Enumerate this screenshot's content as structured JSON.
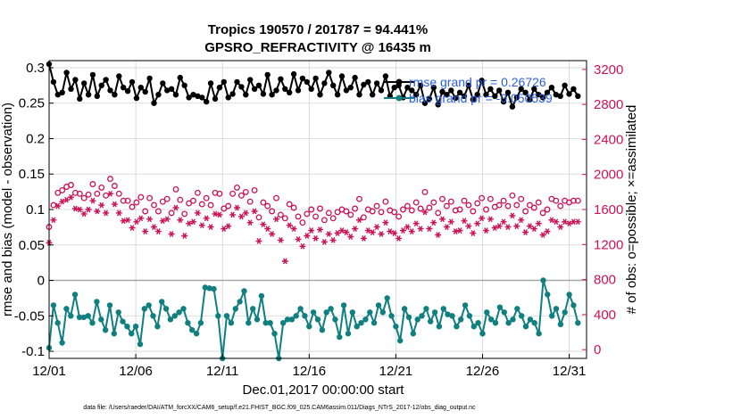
{
  "colors": {
    "rmse": "#000000",
    "bias": "#0f7f7f",
    "nobs": "#cc1257",
    "legend_text": "#2a5fe0",
    "grid": "#d3d3d3",
    "zero_line": "#a8a8a8"
  },
  "chart_data": {
    "type": "line",
    "title": "Tropics 190570 / 201787 = 94.441%",
    "subtitle": "GPSRO_REFRACTIVITY @ 16435 m",
    "xlabel": "Dec.01,2017 00:00:00 start",
    "ylabel": "rmse and bias (model - observation)",
    "y2label": "# of obs: o=possible; ×=assimilated",
    "xlim": [
      0,
      31
    ],
    "ylim": [
      -0.11,
      0.31
    ],
    "y2lim": [
      -100,
      3300
    ],
    "x_ticks": [
      0,
      5,
      10,
      15,
      20,
      25,
      30
    ],
    "x_tick_labels": [
      "12/01",
      "12/06",
      "12/11",
      "12/16",
      "12/21",
      "12/26",
      "12/31"
    ],
    "y_ticks": [
      -0.1,
      -0.05,
      0,
      0.05,
      0.1,
      0.15,
      0.2,
      0.25,
      0.3
    ],
    "y_tick_labels": [
      "-0.1",
      "-0.05",
      "0",
      "0.05",
      "0.1",
      "0.15",
      "0.2",
      "0.25",
      "0.3"
    ],
    "y2_ticks": [
      0,
      400,
      800,
      1200,
      1600,
      2000,
      2400,
      2800,
      3200
    ],
    "y2_tick_labels": [
      "0",
      "400",
      "800",
      "1200",
      "1600",
      "2000",
      "2400",
      "2800",
      "3200"
    ],
    "grid": true,
    "legend_position": "top-right",
    "series": [
      {
        "name": "rmse",
        "legend": "rmse grand pr = 0.26726",
        "axis": "left",
        "values": [
          0.305,
          0.28,
          0.262,
          0.265,
          0.293,
          0.27,
          0.283,
          0.256,
          0.278,
          0.262,
          0.29,
          0.26,
          0.275,
          0.283,
          0.268,
          0.262,
          0.288,
          0.272,
          0.267,
          0.28,
          0.257,
          0.272,
          0.266,
          0.285,
          0.25,
          0.262,
          0.278,
          0.268,
          0.27,
          0.262,
          0.286,
          0.275,
          0.258,
          0.262,
          0.26,
          0.258,
          0.252,
          0.278,
          0.256,
          0.272,
          0.28,
          0.258,
          0.263,
          0.28,
          0.273,
          0.262,
          0.283,
          0.27,
          0.275,
          0.263,
          0.29,
          0.262,
          0.268,
          0.284,
          0.27,
          0.265,
          0.291,
          0.268,
          0.285,
          0.28,
          0.27,
          0.285,
          0.262,
          0.278,
          0.293,
          0.275,
          0.262,
          0.288,
          0.268,
          0.272,
          0.286,
          0.262,
          0.276,
          0.28,
          0.262,
          0.278,
          0.268,
          0.288,
          0.26,
          0.272,
          0.275,
          0.258,
          0.272,
          0.268,
          0.262,
          0.275,
          0.25,
          0.256,
          0.272,
          0.248,
          0.266,
          0.262,
          0.268,
          0.257,
          0.265,
          0.26,
          0.275,
          0.255,
          0.262,
          0.282,
          0.262,
          0.27,
          0.26,
          0.268,
          0.252,
          0.265,
          0.245,
          0.258,
          0.27,
          0.265,
          0.255,
          0.27,
          0.262,
          0.258,
          0.265,
          0.272,
          0.262,
          0.26,
          0.275,
          0.263,
          0.27,
          0.26
        ]
      },
      {
        "name": "bias",
        "legend": "bias grand pr = -0.050539",
        "axis": "left",
        "values": [
          -0.095,
          -0.035,
          -0.06,
          -0.088,
          -0.04,
          -0.05,
          -0.02,
          -0.052,
          -0.052,
          -0.05,
          -0.06,
          -0.03,
          -0.055,
          -0.07,
          -0.035,
          -0.075,
          -0.045,
          -0.058,
          -0.065,
          -0.075,
          -0.065,
          -0.09,
          -0.04,
          -0.035,
          -0.05,
          -0.065,
          -0.03,
          -0.04,
          -0.055,
          -0.05,
          -0.045,
          -0.04,
          -0.06,
          -0.07,
          -0.075,
          -0.06,
          -0.01,
          -0.011,
          -0.012,
          -0.05,
          -0.115,
          -0.05,
          -0.06,
          -0.04,
          -0.03,
          -0.015,
          -0.06,
          -0.04,
          -0.055,
          -0.022,
          -0.06,
          -0.06,
          -0.075,
          -0.11,
          -0.06,
          -0.055,
          -0.055,
          -0.05,
          -0.04,
          -0.05,
          -0.065,
          -0.045,
          -0.055,
          -0.07,
          -0.045,
          -0.04,
          -0.055,
          -0.08,
          -0.035,
          -0.075,
          -0.045,
          -0.065,
          -0.06,
          -0.055,
          -0.045,
          -0.06,
          -0.035,
          -0.045,
          -0.025,
          -0.05,
          -0.065,
          -0.085,
          -0.04,
          -0.052,
          -0.075,
          -0.055,
          -0.05,
          -0.04,
          -0.058,
          -0.045,
          -0.065,
          -0.04,
          -0.048,
          -0.05,
          -0.065,
          -0.055,
          -0.035,
          -0.05,
          -0.065,
          -0.06,
          -0.075,
          -0.045,
          -0.055,
          -0.06,
          -0.038,
          -0.045,
          -0.06,
          -0.055,
          -0.04,
          -0.05,
          -0.065,
          -0.055,
          -0.06,
          -0.075,
          0.0,
          -0.02,
          -0.05,
          -0.04,
          -0.062,
          -0.045,
          -0.02,
          -0.035,
          -0.06
        ]
      },
      {
        "name": "obs possible",
        "legend": "",
        "axis": "right",
        "values": [
          1400,
          1650,
          1790,
          1820,
          1860,
          1880,
          1790,
          1780,
          1730,
          1770,
          1890,
          1780,
          1850,
          1760,
          1950,
          1870,
          1780,
          1700,
          1700,
          1630,
          1680,
          1740,
          1580,
          1730,
          1650,
          1580,
          1690,
          1720,
          1560,
          1830,
          1710,
          1550,
          1670,
          1700,
          1790,
          1660,
          1730,
          1650,
          1790,
          1780,
          1610,
          1640,
          1780,
          1850,
          1760,
          1800,
          1690,
          1820,
          1510,
          1680,
          1640,
          1580,
          1730,
          1540,
          1500,
          1660,
          1620,
          1520,
          1450,
          1550,
          1600,
          1520,
          1610,
          1480,
          1560,
          1500,
          1570,
          1600,
          1580,
          1540,
          1610,
          1720,
          1510,
          1600,
          1580,
          1640,
          1570,
          1690,
          1590,
          1570,
          1520,
          1600,
          1640,
          1590,
          1680,
          1610,
          1800,
          1620,
          1680,
          1560,
          1720,
          1640,
          1690,
          1590,
          1600,
          1700,
          1650,
          1580,
          1670,
          1730,
          1600,
          1720,
          1630,
          1650,
          1700,
          1640,
          1760,
          1650,
          1720,
          1580,
          1650,
          1620,
          1680,
          1560,
          1600,
          1720,
          1700,
          1640,
          1700,
          1680,
          1700,
          1700
        ]
      },
      {
        "name": "obs assimilated",
        "legend": "",
        "axis": "right",
        "values": [
          1220,
          1480,
          1640,
          1690,
          1710,
          1740,
          1610,
          1600,
          1550,
          1600,
          1700,
          1580,
          1650,
          1560,
          1780,
          1660,
          1560,
          1470,
          1480,
          1390,
          1460,
          1500,
          1350,
          1490,
          1400,
          1350,
          1470,
          1490,
          1320,
          1620,
          1480,
          1300,
          1440,
          1460,
          1560,
          1420,
          1500,
          1400,
          1550,
          1540,
          1380,
          1410,
          1540,
          1620,
          1520,
          1560,
          1450,
          1580,
          1240,
          1430,
          1380,
          1320,
          1490,
          1250,
          1010,
          1420,
          1380,
          1260,
          1180,
          1300,
          1360,
          1270,
          1370,
          1230,
          1320,
          1250,
          1330,
          1360,
          1340,
          1290,
          1380,
          1480,
          1270,
          1360,
          1340,
          1400,
          1320,
          1450,
          1350,
          1330,
          1270,
          1360,
          1400,
          1350,
          1440,
          1380,
          1570,
          1380,
          1450,
          1310,
          1490,
          1400,
          1460,
          1350,
          1360,
          1470,
          1410,
          1330,
          1440,
          1500,
          1360,
          1490,
          1390,
          1410,
          1460,
          1400,
          1530,
          1410,
          1480,
          1340,
          1410,
          1380,
          1440,
          1310,
          1350,
          1480,
          1460,
          1400,
          1460,
          1440,
          1460,
          1460
        ]
      }
    ]
  },
  "footer": "data file: /Users/raeder/DAI/ATM_forcXX/CAM6_setup/f.e21.FHIST_BGC.f09_025.CAM6assim.011/Diags_NTrS_2017-12/obs_diag_output.nc"
}
